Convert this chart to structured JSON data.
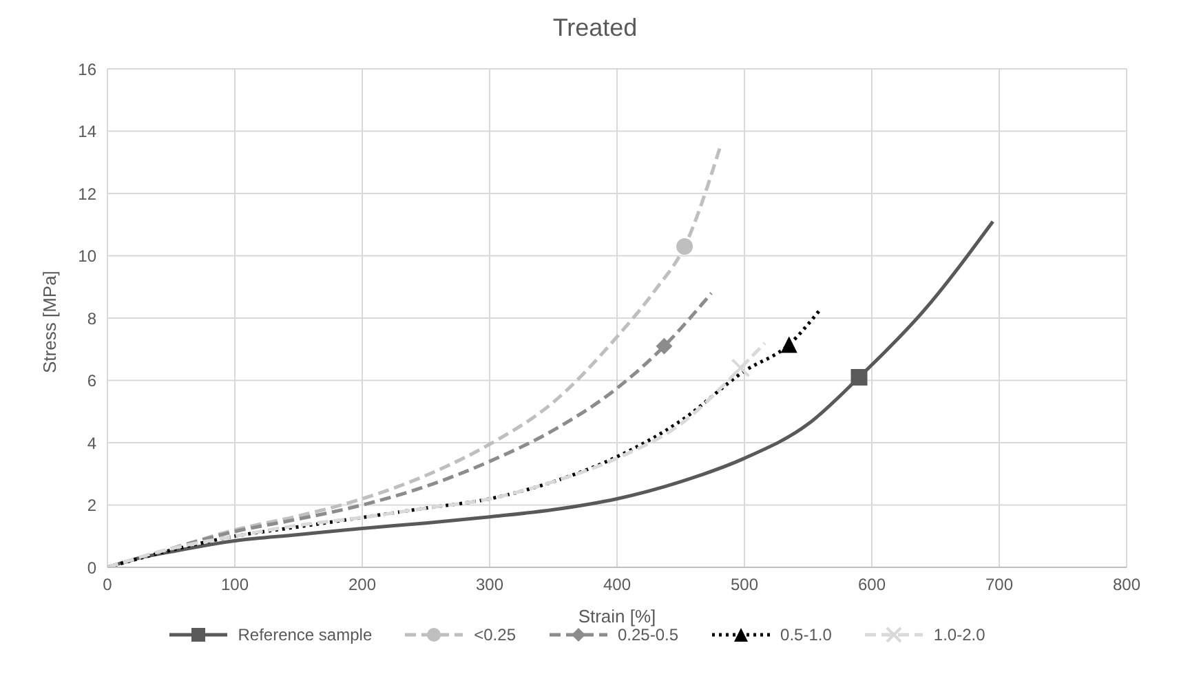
{
  "chart_data": {
    "type": "line",
    "title": "Treated",
    "xlabel": "Strain [%]",
    "ylabel": "Stress [MPa]",
    "xlim": [
      0,
      800
    ],
    "xticks": [
      0,
      100,
      200,
      300,
      400,
      500,
      600,
      700,
      800
    ],
    "ylim": [
      0,
      16
    ],
    "yticks": [
      0,
      2,
      4,
      6,
      8,
      10,
      12,
      14,
      16
    ],
    "grid": true,
    "legend": "bottom",
    "series": [
      {
        "name": "Reference sample",
        "color": "#595959",
        "line_style": "solid",
        "x": [
          0,
          25,
          50,
          100,
          150,
          200,
          250,
          300,
          350,
          400,
          450,
          500,
          550,
          590,
          640,
          695
        ],
        "values": [
          0,
          0.3,
          0.5,
          0.85,
          1.05,
          1.25,
          1.42,
          1.62,
          1.85,
          2.2,
          2.75,
          3.5,
          4.6,
          6.1,
          8.2,
          11.1
        ]
      },
      {
        "type": "scatter",
        "color": "#595959",
        "marker": "square",
        "x": [
          590
        ],
        "values": [
          6.1
        ]
      },
      {
        "name": "<0.25",
        "color": "#bfbfbf",
        "line_style": "dashed",
        "x": [
          0,
          50,
          100,
          150,
          200,
          250,
          300,
          350,
          400,
          430,
          453,
          481
        ],
        "values": [
          0,
          0.6,
          1.2,
          1.65,
          2.2,
          2.95,
          3.95,
          5.3,
          7.4,
          8.9,
          10.3,
          13.5
        ]
      },
      {
        "type": "scatter",
        "color": "#bfbfbf",
        "marker": "circle",
        "x": [
          453
        ],
        "values": [
          10.3
        ]
      },
      {
        "name": "0.25-0.5",
        "color": "#8c8c8c",
        "line_style": "dashed",
        "x": [
          0,
          50,
          100,
          150,
          200,
          250,
          300,
          350,
          400,
          437,
          474
        ],
        "values": [
          0,
          0.6,
          1.15,
          1.55,
          2.0,
          2.6,
          3.4,
          4.4,
          5.75,
          7.1,
          8.8
        ]
      },
      {
        "type": "scatter",
        "color": "#8c8c8c",
        "marker": "diamond",
        "x": [
          437
        ],
        "values": [
          7.1
        ]
      },
      {
        "name": "0.5-1.0",
        "color": "#000000",
        "line_style": "dotted",
        "x": [
          0,
          50,
          100,
          150,
          200,
          250,
          300,
          350,
          400,
          450,
          500,
          535,
          559
        ],
        "values": [
          0,
          0.55,
          1.0,
          1.3,
          1.6,
          1.9,
          2.2,
          2.75,
          3.55,
          4.7,
          6.3,
          7.15,
          8.25
        ]
      },
      {
        "type": "scatter",
        "color": "#000000",
        "marker": "triangle",
        "x": [
          535
        ],
        "values": [
          7.15
        ]
      },
      {
        "name": "1.0-2.0",
        "color": "#d9d9d9",
        "line_style": "dashed",
        "x": [
          0,
          50,
          100,
          150,
          200,
          250,
          300,
          350,
          400,
          450,
          497,
          516
        ],
        "values": [
          0,
          0.6,
          1.0,
          1.35,
          1.6,
          1.9,
          2.2,
          2.75,
          3.5,
          4.6,
          6.4,
          7.2
        ]
      },
      {
        "type": "scatter",
        "color": "#d9d9d9",
        "marker": "cross",
        "x": [
          497
        ],
        "values": [
          6.4
        ]
      }
    ]
  }
}
